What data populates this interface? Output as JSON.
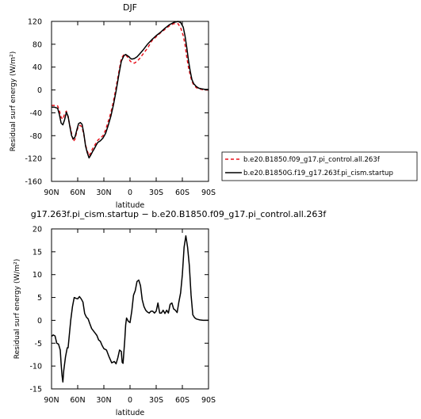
{
  "chart_data": [
    {
      "type": "line",
      "title": "DJF",
      "xlabel": "latitude",
      "ylabel": "Residual surf energy (W/m²)",
      "xlim": [
        90,
        -90
      ],
      "ylim": [
        -160,
        120
      ],
      "xtick_values": [
        90,
        60,
        30,
        0,
        -30,
        -60,
        -90
      ],
      "xtick_labels": [
        "90N",
        "60N",
        "30N",
        "0",
        "30S",
        "60S",
        "90S"
      ],
      "ytick_values": [
        -160,
        -120,
        -80,
        -40,
        0,
        40,
        80,
        120
      ],
      "ytick_labels": [
        "-160",
        "-120",
        "-80",
        "-40",
        "0",
        "40",
        "80",
        "120"
      ],
      "legend_position": "right",
      "series": [
        {
          "name": "b.e20.B1850.f09_g17.pi_control.all.263f",
          "color": "#e8141e",
          "dash": "dashed",
          "x": [
            90,
            87,
            83,
            81,
            79,
            77,
            75,
            73,
            71,
            69,
            67,
            65,
            63,
            61,
            59,
            57,
            55,
            53,
            51,
            49,
            47,
            45,
            43,
            41,
            39,
            37,
            34,
            31,
            28,
            25,
            22,
            19,
            16,
            13,
            10,
            7,
            5,
            3,
            1,
            0,
            -2,
            -5,
            -8,
            -11,
            -15,
            -20,
            -25,
            -30,
            -35,
            -40,
            -45,
            -50,
            -55,
            -58,
            -61,
            -63,
            -65,
            -67,
            -69,
            -71,
            -73,
            -76,
            -79,
            -82,
            -86,
            -90
          ],
          "y": [
            -27,
            -27,
            -28,
            -36,
            -48,
            -51,
            -42,
            -37,
            -48,
            -62,
            -76,
            -90,
            -86,
            -72,
            -63,
            -62,
            -65,
            -78,
            -96,
            -107,
            -115,
            -110,
            -103,
            -98,
            -93,
            -88,
            -84,
            -80,
            -70,
            -55,
            -40,
            -20,
            5,
            30,
            55,
            62,
            61,
            58,
            54,
            51,
            48,
            47,
            50,
            55,
            63,
            73,
            86,
            93,
            100,
            106,
            112,
            116,
            116,
            109,
            95,
            80,
            58,
            40,
            26,
            15,
            9,
            4,
            2,
            1,
            0,
            0
          ]
        },
        {
          "name": "b.e20.B1850G.f19_g17.263f.pi_cism.startup",
          "color": "#000000",
          "dash": "solid",
          "x": [
            90,
            87,
            83,
            81,
            79,
            77,
            75,
            73,
            71,
            69,
            67,
            65,
            63,
            61,
            59,
            57,
            55,
            53,
            51,
            49,
            47,
            45,
            43,
            41,
            39,
            37,
            34,
            31,
            28,
            25,
            22,
            19,
            16,
            13,
            10,
            7,
            5,
            3,
            1,
            0,
            -2,
            -5,
            -8,
            -11,
            -15,
            -20,
            -25,
            -30,
            -35,
            -40,
            -45,
            -50,
            -55,
            -58,
            -61,
            -63,
            -65,
            -67,
            -69,
            -71,
            -73,
            -76,
            -79,
            -82,
            -86,
            -90
          ],
          "y": [
            -30,
            -30,
            -32,
            -43,
            -58,
            -61,
            -52,
            -39,
            -46,
            -64,
            -80,
            -86,
            -82,
            -70,
            -59,
            -57,
            -60,
            -76,
            -98,
            -110,
            -119,
            -114,
            -108,
            -103,
            -97,
            -92,
            -89,
            -84,
            -76,
            -62,
            -46,
            -26,
            -2,
            25,
            50,
            60,
            62,
            60,
            58,
            56,
            54,
            55,
            58,
            63,
            70,
            80,
            88,
            95,
            101,
            108,
            114,
            118,
            120,
            118,
            110,
            95,
            75,
            52,
            33,
            18,
            11,
            6,
            3,
            2,
            1,
            1
          ]
        }
      ]
    },
    {
      "type": "line",
      "title": "g17.263f.pi_cism.startup − b.e20.B1850.f09_g17.pi_control.all.263f",
      "xlabel": "latitude",
      "ylabel": "Residual surf energy (W/m²)",
      "xlim": [
        90,
        -90
      ],
      "ylim": [
        -15,
        20
      ],
      "xtick_values": [
        90,
        60,
        30,
        0,
        -30,
        -60,
        -90
      ],
      "xtick_labels": [
        "90N",
        "60N",
        "30N",
        "0",
        "30S",
        "60S",
        "90S"
      ],
      "ytick_values": [
        -15,
        -10,
        -5,
        0,
        5,
        10,
        15,
        20
      ],
      "ytick_labels": [
        "-15",
        "-10",
        "-5",
        "0",
        "5",
        "10",
        "15",
        "20"
      ],
      "series": [
        {
          "color": "#000000",
          "dash": "solid",
          "x": [
            90,
            88,
            86,
            84,
            82,
            80,
            79,
            78,
            77,
            76,
            75,
            74,
            73,
            72,
            71,
            70,
            68,
            66,
            64,
            62,
            60,
            58,
            56,
            54,
            52,
            50,
            48,
            46,
            44,
            42,
            40,
            38,
            36,
            34,
            32,
            30,
            27,
            24,
            21,
            18,
            16,
            14,
            12,
            10,
            9,
            8,
            7,
            6,
            5,
            4,
            2,
            0,
            -2,
            -4,
            -6,
            -8,
            -10,
            -12,
            -14,
            -16,
            -18,
            -20,
            -22,
            -24,
            -26,
            -28,
            -30,
            -32,
            -34,
            -36,
            -38,
            -40,
            -42,
            -44,
            -46,
            -48,
            -50,
            -52,
            -54,
            -56,
            -58,
            -60,
            -62,
            -64,
            -66,
            -68,
            -70,
            -72,
            -74,
            -76,
            -78,
            -80,
            -84,
            -88,
            -90
          ],
          "y": [
            -3.5,
            -3.2,
            -3.4,
            -5,
            -5.2,
            -6.5,
            -9.5,
            -12,
            -13.5,
            -11,
            -9.5,
            -8,
            -7,
            -6,
            -6,
            -4,
            0,
            3,
            5,
            4.8,
            4.7,
            5.2,
            4.7,
            4,
            1.5,
            0.7,
            0.3,
            -0.8,
            -1.8,
            -2.3,
            -2.8,
            -3.3,
            -4.3,
            -4.6,
            -5.5,
            -6.2,
            -6.5,
            -8,
            -9.3,
            -9,
            -9.5,
            -8.2,
            -6.5,
            -6.8,
            -9.2,
            -9.4,
            -6.8,
            -4.2,
            -1,
            0.5,
            -0.2,
            -0.5,
            2,
            5.5,
            6.5,
            8.5,
            8.8,
            7.6,
            4.5,
            3,
            2.2,
            1.8,
            1.6,
            2,
            2,
            1.6,
            2,
            3.8,
            1.6,
            1.6,
            2.2,
            1.5,
            2.2,
            1.6,
            3.5,
            3.8,
            2.5,
            2.2,
            1.7,
            4,
            6,
            10,
            16,
            18.5,
            16,
            12,
            5.5,
            1.2,
            0.6,
            0.3,
            0.2,
            0.1,
            0,
            0,
            0
          ]
        }
      ]
    }
  ]
}
